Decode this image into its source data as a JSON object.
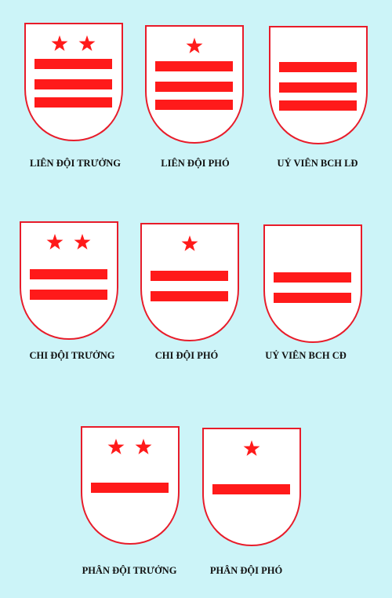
{
  "colors": {
    "background": "#ccf4f8",
    "badge_fill": "#ffffff",
    "badge_border": "#e81c2a",
    "mark": "#ff1a1a"
  },
  "badges": [
    {
      "title": "LIÊN ĐỘI TRƯỞNG",
      "stars": 2,
      "stripes": 3
    },
    {
      "title": "LIÊN ĐỘI PHÓ",
      "stars": 1,
      "stripes": 3
    },
    {
      "title": "UỶ VIÊN BCH LĐ",
      "stars": 0,
      "stripes": 3
    },
    {
      "title": "CHI ĐỘI TRƯỞNG",
      "stars": 2,
      "stripes": 2
    },
    {
      "title": "CHI ĐỘI PHÓ",
      "stars": 1,
      "stripes": 2
    },
    {
      "title": "UỶ VIÊN BCH CĐ",
      "stars": 0,
      "stripes": 2
    },
    {
      "title": "PHÂN ĐỘI TRƯỞNG",
      "stars": 2,
      "stripes": 1
    },
    {
      "title": "PHÂN ĐỘI PHÓ",
      "stars": 1,
      "stripes": 1
    }
  ]
}
